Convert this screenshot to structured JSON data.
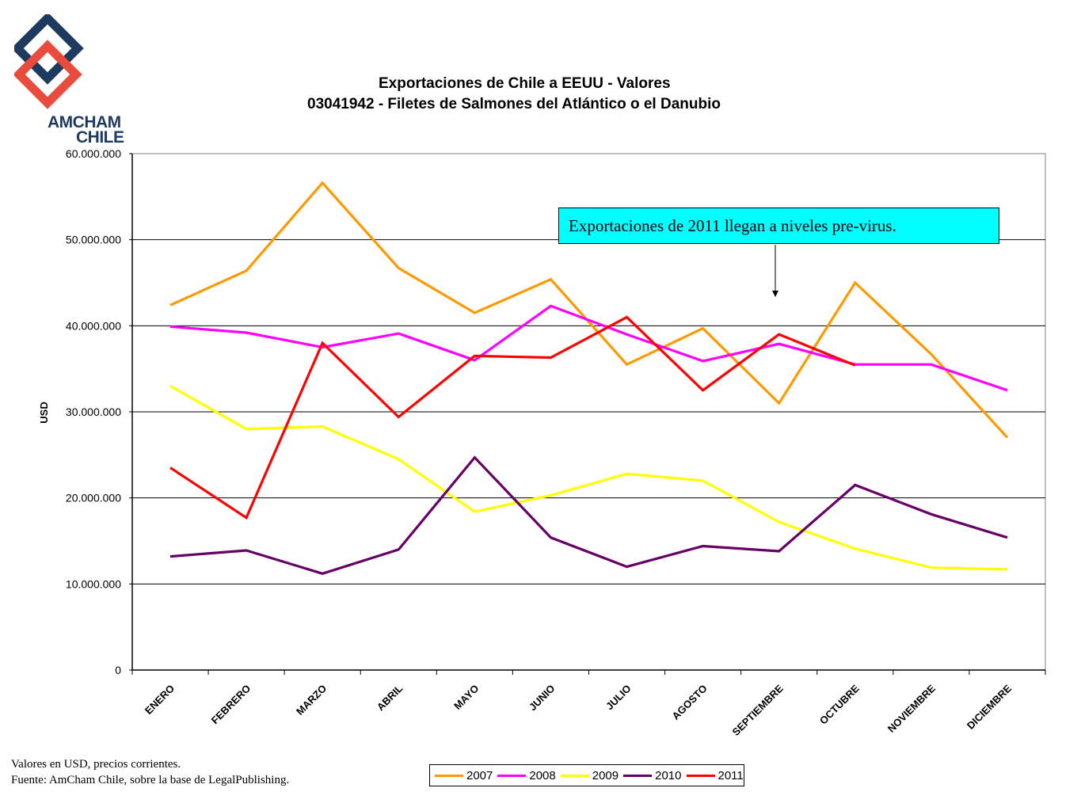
{
  "logo": {
    "line1": "AMCHAM",
    "line2": "CHILE"
  },
  "title": {
    "line1": "Exportaciones de Chile a EEUU - Valores",
    "line2": "03041942 - Filetes de Salmones del Atlántico o el Danubio"
  },
  "annotation": "Exportaciones de 2011 llegan a niveles pre-virus.",
  "notes": {
    "line1": "Valores en USD, precios corrientes.",
    "line2": "Fuente: AmCham Chile, sobre la base de LegalPublishing."
  },
  "colors": {
    "2007": "#ff9900",
    "2008": "#ff00ff",
    "2009": "#ffff00",
    "2010": "#660066",
    "2011": "#ff0000"
  },
  "chart_data": {
    "type": "line",
    "title": "Exportaciones de Chile a EEUU - Valores",
    "subtitle": "03041942 - Filetes de Salmones del Atlántico o el Danubio",
    "xlabel": "",
    "ylabel": "USD",
    "ylim": [
      0,
      60000000
    ],
    "yticks": [
      "0",
      "10.000.000",
      "20.000.000",
      "30.000.000",
      "40.000.000",
      "50.000.000",
      "60.000.000"
    ],
    "grid": true,
    "legend_position": "bottom",
    "categories": [
      "ENERO",
      "FEBRERO",
      "MARZO",
      "ABRIL",
      "MAYO",
      "JUNIO",
      "JULIO",
      "AGOSTO",
      "SEPTIEMBRE",
      "OCTUBRE",
      "NOVIEMBRE",
      "DICIEMBRE"
    ],
    "series": [
      {
        "name": "2007",
        "values": [
          42400000,
          46400000,
          56600000,
          46700000,
          41500000,
          45400000,
          35500000,
          39700000,
          31000000,
          45000000,
          36700000,
          27000000
        ]
      },
      {
        "name": "2008",
        "values": [
          39900000,
          39200000,
          37500000,
          39100000,
          36000000,
          42300000,
          39000000,
          35900000,
          37900000,
          35500000,
          35500000,
          32500000
        ]
      },
      {
        "name": "2009",
        "values": [
          33000000,
          28000000,
          28300000,
          24500000,
          18400000,
          20300000,
          22800000,
          22000000,
          17200000,
          14100000,
          11900000,
          11700000
        ]
      },
      {
        "name": "2010",
        "values": [
          13200000,
          13900000,
          11200000,
          14000000,
          24700000,
          15400000,
          12000000,
          14400000,
          13800000,
          21500000,
          18100000,
          15400000
        ]
      },
      {
        "name": "2011",
        "values": [
          23500000,
          17700000,
          38000000,
          29400000,
          36500000,
          36300000,
          41000000,
          32500000,
          39000000,
          35400000,
          null,
          null
        ]
      }
    ]
  }
}
